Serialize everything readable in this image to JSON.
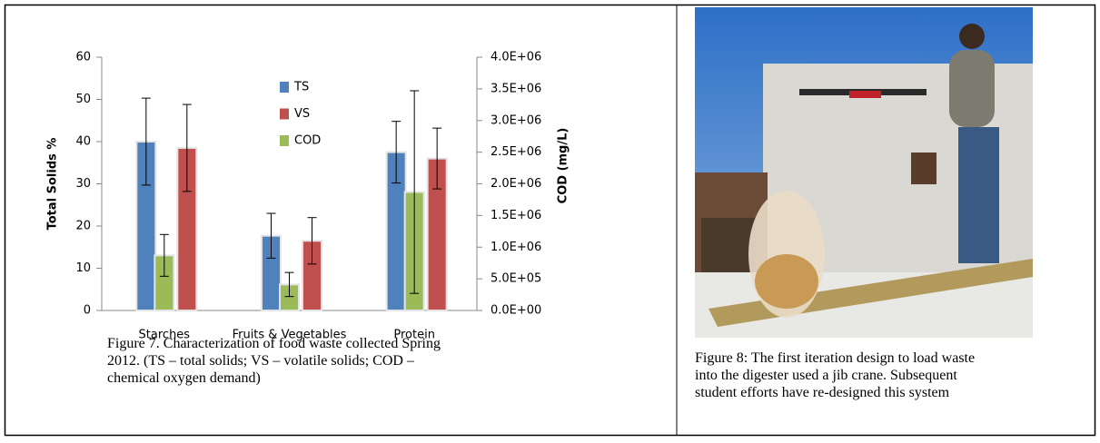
{
  "chart_data": {
    "type": "bar",
    "categories": [
      "Starches",
      "Fruits & Vegetables",
      "Protein"
    ],
    "y_label": "Total Solids %",
    "y2_label": "COD (mg/L)",
    "series": [
      {
        "name": "TS",
        "color": "#4f81bd",
        "values": [
          40,
          17.7,
          37.5
        ],
        "errors": [
          10.3,
          5.3,
          7.3
        ]
      },
      {
        "name": "VS",
        "color": "#c0504d",
        "values": [
          38.5,
          16.5,
          36
        ],
        "errors": [
          10.3,
          5.5,
          7.2
        ]
      },
      {
        "name": "COD",
        "color": "#9bbb59",
        "axis": "y2",
        "values": [
          870000,
          410000,
          1870000
        ],
        "errors": [
          330000,
          190000,
          1600000
        ]
      }
    ],
    "ylim": [
      0,
      60
    ],
    "yticks": [
      0,
      10,
      20,
      30,
      40,
      50,
      60
    ],
    "y2lim": [
      0,
      4000000
    ],
    "y2ticks": [
      {
        "value": 0,
        "label": "0.0E+00"
      },
      {
        "value": 500000,
        "label": "5.0E+05"
      },
      {
        "value": 1000000,
        "label": "1.0E+06"
      },
      {
        "value": 1500000,
        "label": "1.5E+06"
      },
      {
        "value": 2000000,
        "label": "2.0E+06"
      },
      {
        "value": 2500000,
        "label": "2.5E+06"
      },
      {
        "value": 3000000,
        "label": "3.0E+06"
      },
      {
        "value": 3500000,
        "label": "3.5E+06"
      },
      {
        "value": 4000000,
        "label": "4.0E+06"
      }
    ]
  },
  "figure7_caption": [
    "Figure 7.  Characterization of food waste collected Spring",
    "2012. (TS – total solids; VS – volatile solids; COD –",
    "chemical oxygen demand)"
  ],
  "figure8_caption": [
    "Figure 8:  The first iteration design to load waste",
    "into the digester used a jib crane.  Subsequent",
    "student efforts have re-designed this system"
  ]
}
